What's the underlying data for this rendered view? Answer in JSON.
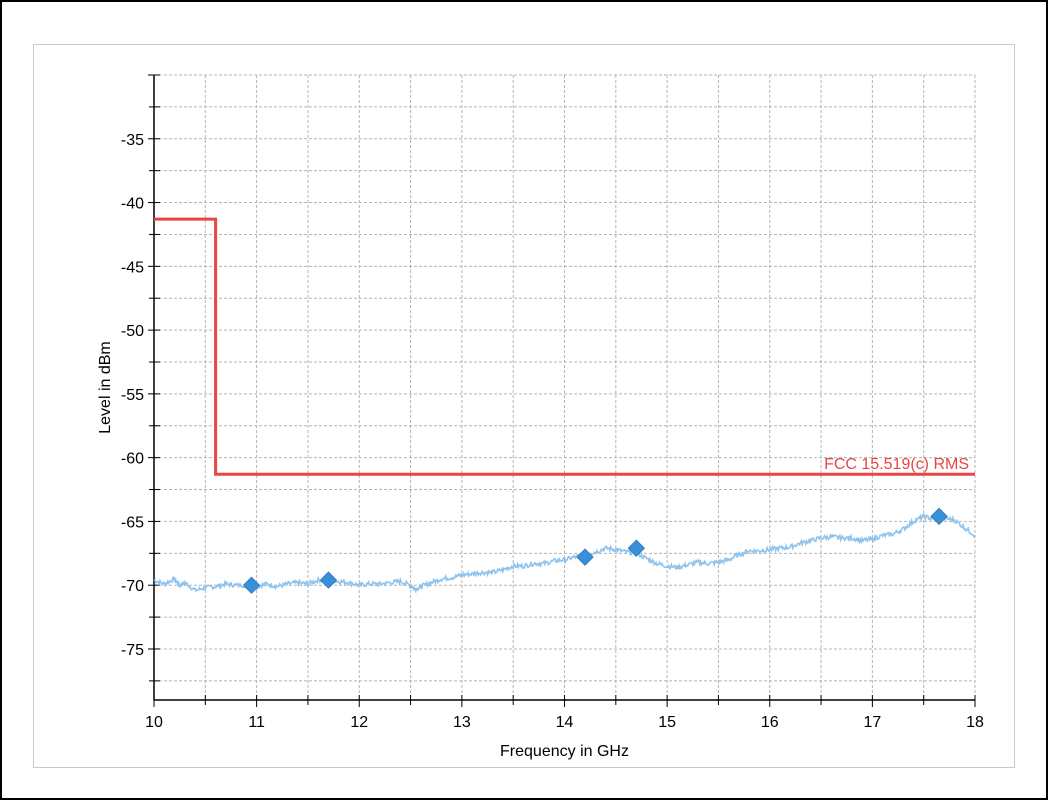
{
  "chart_data": {
    "type": "line",
    "title": "",
    "xlabel": "Frequency in GHz",
    "ylabel": "Level in dBm",
    "xlim": [
      10,
      18
    ],
    "ylim": [
      -79,
      -30
    ],
    "x_ticks": [
      "10",
      "11",
      "12",
      "13",
      "14",
      "15",
      "16",
      "17",
      "18"
    ],
    "y_ticks": [
      "-35",
      "-40",
      "-45",
      "-50",
      "-55",
      "-60",
      "-65",
      "-70",
      "-75"
    ],
    "x_tick_values": [
      10,
      11,
      12,
      13,
      14,
      15,
      16,
      17,
      18
    ],
    "y_tick_values": [
      -35,
      -40,
      -45,
      -50,
      -55,
      -60,
      -65,
      -70,
      -75
    ],
    "grid": true,
    "limit_line": {
      "label": "FCC 15.519(c) RMS",
      "color": "#e84545",
      "points": [
        [
          10,
          -41.3
        ],
        [
          10.6,
          -41.3
        ],
        [
          10.6,
          -61.3
        ],
        [
          18,
          -61.3
        ]
      ]
    },
    "series": [
      {
        "color": "#8ec3ee",
        "points": [
          [
            10,
            -69.6
          ],
          [
            10.1,
            -69.9
          ],
          [
            10.2,
            -69.5
          ],
          [
            10.25,
            -70.0
          ],
          [
            10.3,
            -69.8
          ],
          [
            10.4,
            -70.4
          ],
          [
            10.5,
            -70.2
          ],
          [
            10.6,
            -70.1
          ],
          [
            10.7,
            -69.9
          ],
          [
            10.8,
            -70.0
          ],
          [
            10.95,
            -70.0
          ],
          [
            11.0,
            -70.1
          ],
          [
            11.1,
            -69.9
          ],
          [
            11.2,
            -70.1
          ],
          [
            11.3,
            -69.9
          ],
          [
            11.4,
            -69.8
          ],
          [
            11.5,
            -69.9
          ],
          [
            11.6,
            -69.6
          ],
          [
            11.7,
            -69.6
          ],
          [
            11.8,
            -69.7
          ],
          [
            11.9,
            -69.8
          ],
          [
            12.0,
            -70.0
          ],
          [
            12.1,
            -69.9
          ],
          [
            12.2,
            -69.9
          ],
          [
            12.3,
            -69.8
          ],
          [
            12.4,
            -69.7
          ],
          [
            12.5,
            -70.0
          ],
          [
            12.55,
            -70.3
          ],
          [
            12.6,
            -70.1
          ],
          [
            12.7,
            -69.8
          ],
          [
            12.8,
            -69.5
          ],
          [
            12.9,
            -69.4
          ],
          [
            13.0,
            -69.2
          ],
          [
            13.1,
            -69.1
          ],
          [
            13.2,
            -69.0
          ],
          [
            13.3,
            -69.0
          ],
          [
            13.4,
            -68.8
          ],
          [
            13.5,
            -68.5
          ],
          [
            13.6,
            -68.5
          ],
          [
            13.7,
            -68.3
          ],
          [
            13.8,
            -68.3
          ],
          [
            13.9,
            -68.1
          ],
          [
            14.0,
            -68.0
          ],
          [
            14.1,
            -67.8
          ],
          [
            14.2,
            -67.6
          ],
          [
            14.3,
            -67.4
          ],
          [
            14.4,
            -67.1
          ],
          [
            14.5,
            -67.2
          ],
          [
            14.6,
            -67.4
          ],
          [
            14.7,
            -67.5
          ],
          [
            14.8,
            -67.9
          ],
          [
            14.9,
            -68.3
          ],
          [
            15.0,
            -68.5
          ],
          [
            15.1,
            -68.6
          ],
          [
            15.2,
            -68.4
          ],
          [
            15.3,
            -68.2
          ],
          [
            15.4,
            -68.3
          ],
          [
            15.5,
            -68.2
          ],
          [
            15.6,
            -68.0
          ],
          [
            15.7,
            -67.6
          ],
          [
            15.8,
            -67.3
          ],
          [
            15.9,
            -67.3
          ],
          [
            16.0,
            -67.2
          ],
          [
            16.1,
            -67.1
          ],
          [
            16.2,
            -67.0
          ],
          [
            16.3,
            -66.7
          ],
          [
            16.4,
            -66.5
          ],
          [
            16.5,
            -66.3
          ],
          [
            16.6,
            -66.2
          ],
          [
            16.7,
            -66.3
          ],
          [
            16.8,
            -66.3
          ],
          [
            16.9,
            -66.5
          ],
          [
            17.0,
            -66.4
          ],
          [
            17.1,
            -66.1
          ],
          [
            17.2,
            -66.0
          ],
          [
            17.3,
            -65.6
          ],
          [
            17.4,
            -65.0
          ],
          [
            17.5,
            -64.6
          ],
          [
            17.6,
            -64.8
          ],
          [
            17.7,
            -64.7
          ],
          [
            17.8,
            -64.9
          ],
          [
            17.9,
            -65.5
          ],
          [
            18.0,
            -66.1
          ]
        ]
      }
    ],
    "markers": [
      {
        "x": 10.95,
        "y": -70.0
      },
      {
        "x": 11.7,
        "y": -69.6
      },
      {
        "x": 14.2,
        "y": -67.8
      },
      {
        "x": 14.7,
        "y": -67.1
      },
      {
        "x": 17.65,
        "y": -64.6
      }
    ],
    "marker_color": "#3a8fd9",
    "colors": {
      "grid": "#b4b4b4",
      "axis": "#000000",
      "limit": "#e84545",
      "trace": "#8ec3ee",
      "marker": "#3a8fd9"
    }
  }
}
